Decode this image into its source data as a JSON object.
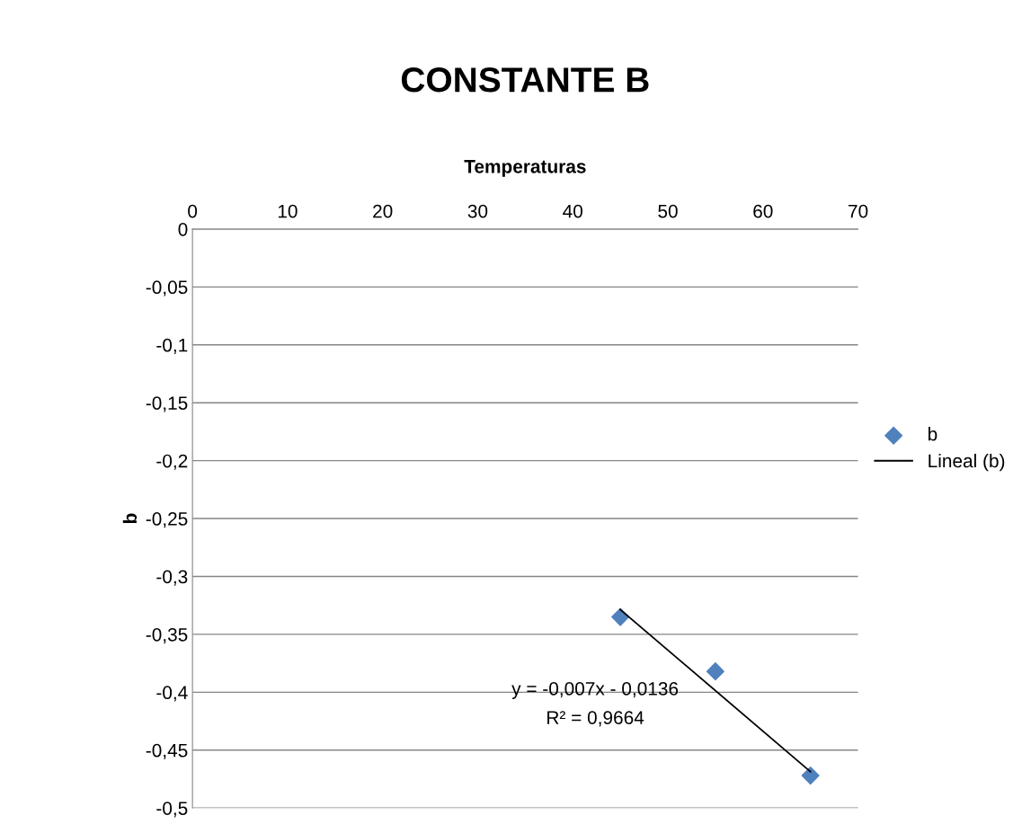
{
  "chart_data": {
    "type": "scatter",
    "title": "CONSTANTE B",
    "xlabel": "Temperaturas",
    "ylabel": "b",
    "series": [
      {
        "name": "b",
        "color": "#4f81bd",
        "marker": "diamond",
        "x": [
          45,
          55,
          65
        ],
        "values": [
          -0.335,
          -0.382,
          -0.472
        ]
      },
      {
        "name": "Lineal (b)",
        "type": "line",
        "color": "#000000",
        "line_style": "solid",
        "x": [
          45,
          65
        ],
        "values": [
          -0.3286,
          -0.4686
        ]
      }
    ],
    "annotations": [
      "y = -0,007x - 0,0136",
      "R² = 0,9664"
    ],
    "xlim": [
      0,
      70
    ],
    "xticks": [
      0,
      10,
      20,
      30,
      40,
      50,
      60,
      70
    ],
    "ylim": [
      -0.5,
      0
    ],
    "yticks": [
      {
        "value": -0.5,
        "label": "-0,5"
      },
      {
        "value": -0.45,
        "label": "-0,45"
      },
      {
        "value": -0.4,
        "label": "-0,4"
      },
      {
        "value": -0.35,
        "label": "-0,35"
      },
      {
        "value": -0.3,
        "label": "-0,3"
      },
      {
        "value": -0.25,
        "label": "-0,25"
      },
      {
        "value": -0.2,
        "label": "-0,2"
      },
      {
        "value": -0.15,
        "label": "-0,15"
      },
      {
        "value": -0.1,
        "label": "-0,1"
      },
      {
        "value": -0.05,
        "label": "-0,05"
      },
      0
    ],
    "grid": "y",
    "legend": "right"
  }
}
